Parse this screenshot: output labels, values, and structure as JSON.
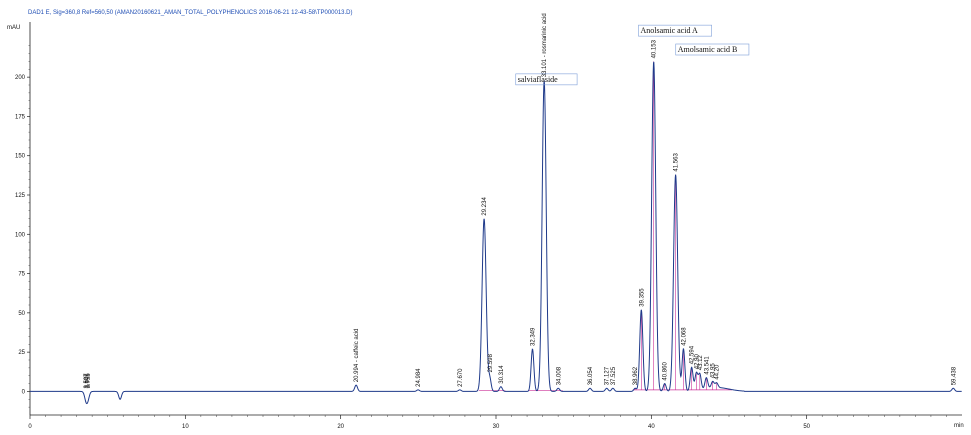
{
  "header": {
    "signal": "DAD1 E, Sig=360,8 Ref=560,50 (AMAN20160621_AMAN_TOTAL_POLYPHENOLICS 2016-06-21 12-43-58\\TP000013.D)"
  },
  "chart_data": {
    "type": "line",
    "title": "",
    "xlabel": "min",
    "ylabel": "mAU",
    "xlim": [
      0,
      60
    ],
    "ylim": [
      -15,
      230
    ],
    "x_ticks": [
      0,
      10,
      20,
      30,
      40,
      50
    ],
    "y_ticks": [
      0,
      25,
      50,
      75,
      100,
      125,
      150,
      175,
      200
    ],
    "grid": false,
    "legend": "none",
    "line_color": "#1f3a8a",
    "baseline_color": "#cc3399",
    "peaks": [
      {
        "rt": 3.59,
        "height": -4,
        "label": "3.587",
        "marked": true
      },
      {
        "rt": 3.67,
        "height": -3,
        "label": "3.675",
        "marked": true
      },
      {
        "rt": 3.75,
        "height": -3,
        "label": "3.755",
        "marked": true
      },
      {
        "rt": 5.8,
        "height": -5,
        "label": "",
        "marked": false
      },
      {
        "rt": 20.994,
        "height": 4,
        "label": "20.994 - caffeic acid",
        "marked": true
      },
      {
        "rt": 24.984,
        "height": 1,
        "label": "24.984",
        "marked": true
      },
      {
        "rt": 27.67,
        "height": 1,
        "label": "27.670",
        "marked": true
      },
      {
        "rt": 29.234,
        "height": 110,
        "label": "29.234",
        "marked": true
      },
      {
        "rt": 29.598,
        "height": 8,
        "label": "29.598",
        "marked": true
      },
      {
        "rt": 30.314,
        "height": 3,
        "label": "30.314",
        "marked": true
      },
      {
        "rt": 32.349,
        "height": 27,
        "label": "32.349",
        "marked": true
      },
      {
        "rt": 33.101,
        "height": 198,
        "label": "33.101 - rosmarinic acid",
        "marked": true
      },
      {
        "rt": 34.008,
        "height": 2,
        "label": "34.008",
        "marked": true
      },
      {
        "rt": 36.054,
        "height": 2,
        "label": "36.054",
        "marked": true
      },
      {
        "rt": 37.127,
        "height": 2,
        "label": "37.127",
        "marked": true
      },
      {
        "rt": 37.525,
        "height": 2,
        "label": "37.525",
        "marked": true
      },
      {
        "rt": 38.962,
        "height": 2,
        "label": "38.962",
        "marked": true
      },
      {
        "rt": 39.355,
        "height": 52,
        "label": "39.355",
        "marked": true
      },
      {
        "rt": 40.153,
        "height": 210,
        "label": "40.153",
        "marked": true
      },
      {
        "rt": 40.86,
        "height": 5,
        "label": "40.860",
        "marked": true
      },
      {
        "rt": 41.563,
        "height": 138,
        "label": "41.563",
        "marked": true
      },
      {
        "rt": 42.068,
        "height": 27,
        "label": "42.068",
        "marked": true
      },
      {
        "rt": 42.594,
        "height": 15,
        "label": "42.594",
        "marked": true
      },
      {
        "rt": 42.9,
        "height": 11,
        "label": "42.90",
        "marked": true
      },
      {
        "rt": 43.12,
        "height": 10,
        "label": "43.12",
        "marked": true
      },
      {
        "rt": 43.541,
        "height": 7,
        "label": "43.541",
        "marked": true
      },
      {
        "rt": 43.95,
        "height": 4,
        "label": "43.95",
        "marked": true
      },
      {
        "rt": 44.2,
        "height": 3,
        "label": "44.20",
        "marked": true
      },
      {
        "rt": 59.438,
        "height": 2,
        "label": "59.438",
        "marked": true
      }
    ],
    "annotations": [
      {
        "text": "salviaflaside",
        "rt": 31.4,
        "mau": 197
      },
      {
        "text": "Anolsamic acid A",
        "rt": 39.3,
        "mau": 228
      },
      {
        "text": "Amolsamic acid B",
        "rt": 41.7,
        "mau": 216
      }
    ]
  }
}
